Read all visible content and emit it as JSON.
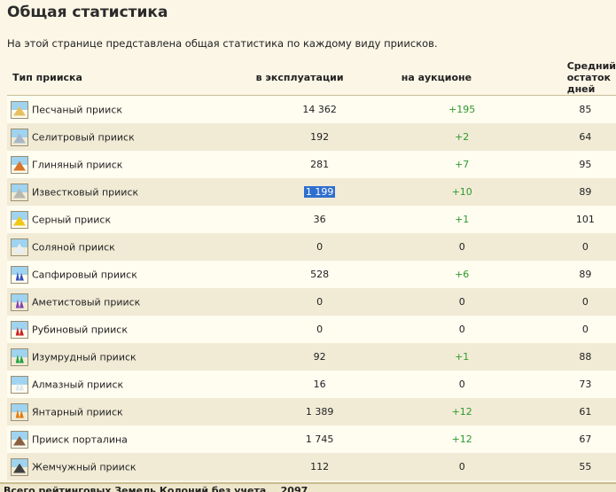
{
  "page": {
    "title": "Общая статистика",
    "intro": "На этой странице представлена общая статистика по каждому виду приисков."
  },
  "table": {
    "headers": {
      "type": "Тип прииска",
      "exploited": "в эксплуатации",
      "auction": "на аукционе",
      "days": "Средний остаток дней"
    },
    "rows": [
      {
        "name": "Песчаный прииск",
        "exploited": "14 362",
        "auction": "+195",
        "days": "85",
        "icon": "sand-mine-icon",
        "color": "#e8c060"
      },
      {
        "name": "Селитровый прииск",
        "exploited": "192",
        "auction": "+2",
        "days": "64",
        "icon": "saltpeter-mine-icon",
        "color": "#a8b8c8"
      },
      {
        "name": "Глиняный прииск",
        "exploited": "281",
        "auction": "+7",
        "days": "95",
        "icon": "clay-mine-icon",
        "color": "#d8742a"
      },
      {
        "name": "Известковый прииск",
        "exploited": "1 199",
        "auction": "+10",
        "days": "89",
        "icon": "limestone-mine-icon",
        "color": "#b8b8b0"
      },
      {
        "name": "Серный прииск",
        "exploited": "36",
        "auction": "+1",
        "days": "101",
        "icon": "sulfur-mine-icon",
        "color": "#f0c818"
      },
      {
        "name": "Соляной прииск",
        "exploited": "0",
        "auction": "0",
        "days": "0",
        "icon": "salt-mine-icon",
        "color": "#e8eef0"
      },
      {
        "name": "Сапфировый прииск",
        "exploited": "528",
        "auction": "+6",
        "days": "89",
        "icon": "sapphire-mine-icon",
        "color": "#3050c0"
      },
      {
        "name": "Аметистовый прииск",
        "exploited": "0",
        "auction": "0",
        "days": "0",
        "icon": "amethyst-mine-icon",
        "color": "#8040b0"
      },
      {
        "name": "Рубиновый прииск",
        "exploited": "0",
        "auction": "0",
        "days": "0",
        "icon": "ruby-mine-icon",
        "color": "#c82020"
      },
      {
        "name": "Изумрудный прииск",
        "exploited": "92",
        "auction": "+1",
        "days": "88",
        "icon": "emerald-mine-icon",
        "color": "#20a040"
      },
      {
        "name": "Алмазный прииск",
        "exploited": "16",
        "auction": "0",
        "days": "73",
        "icon": "diamond-mine-icon",
        "color": "#d8e8f0"
      },
      {
        "name": "Янтарный прииск",
        "exploited": "1 389",
        "auction": "+12",
        "days": "61",
        "icon": "amber-mine-icon",
        "color": "#e07a10"
      },
      {
        "name": "Прииск порталина",
        "exploited": "1 745",
        "auction": "+12",
        "days": "67",
        "icon": "portalin-mine-icon",
        "color": "#8a6040"
      },
      {
        "name": "Жемчужный прииск",
        "exploited": "112",
        "auction": "0",
        "days": "55",
        "icon": "pearl-mine-icon",
        "color": "#404040"
      }
    ]
  },
  "footer": {
    "text": "Всего рейтинговых Земель Колоний без учета...  2097"
  }
}
